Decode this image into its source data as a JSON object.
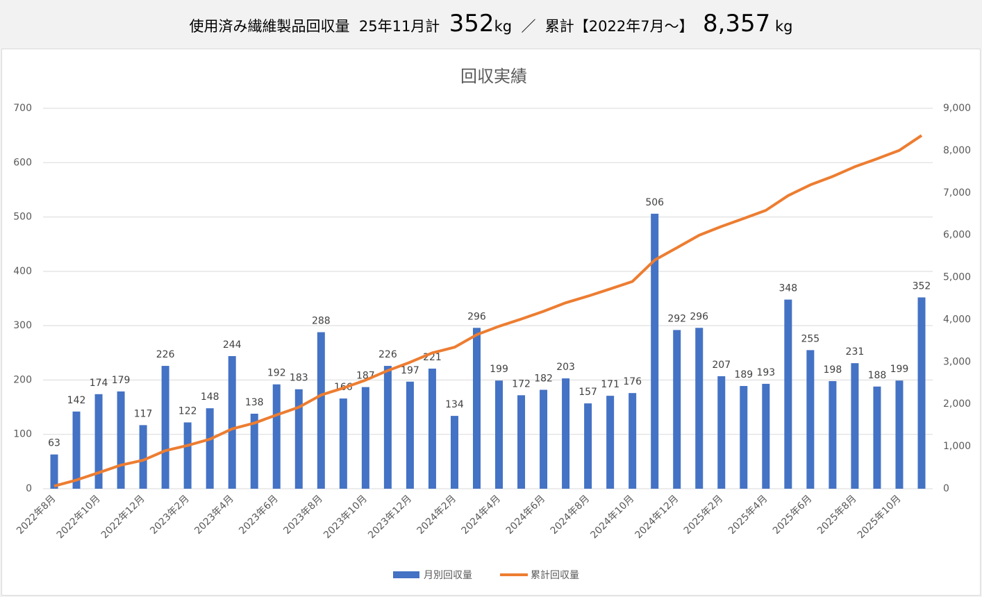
{
  "header": {
    "label": "使用済み繊維製品回収量",
    "month_label": "25年11月計",
    "month_value": "352",
    "month_unit": "kg",
    "separator": "／",
    "total_label": "累計【2022年7月～】",
    "total_value": "8,357",
    "total_unit": "kg"
  },
  "chart_data": {
    "type": "bar",
    "title": "回収実績",
    "categories": [
      "2022年8月",
      null,
      "2022年10月",
      null,
      "2022年12月",
      null,
      "2023年2月",
      null,
      "2023年4月",
      null,
      "2023年6月",
      null,
      "2023年8月",
      null,
      "2023年10月",
      null,
      "2023年12月",
      null,
      "2024年2月",
      null,
      "2024年4月",
      null,
      "2024年6月",
      null,
      "2024年8月",
      null,
      "2024年10月",
      null,
      "2024年12月",
      null,
      "2025年2月",
      null,
      "2025年4月",
      null,
      "2025年6月",
      null,
      "2025年8月",
      null,
      "2025年10月",
      null
    ],
    "series": [
      {
        "name": "月別回収量",
        "type": "bar",
        "color": "#4472c4",
        "values": [
          63,
          142,
          174,
          179,
          117,
          226,
          122,
          148,
          244,
          138,
          192,
          183,
          288,
          166,
          187,
          226,
          197,
          221,
          134,
          296,
          199,
          172,
          182,
          203,
          157,
          171,
          176,
          506,
          292,
          296,
          207,
          189,
          193,
          348,
          255,
          198,
          231,
          188,
          199,
          352
        ]
      },
      {
        "name": "累計回収量",
        "type": "line",
        "axis": "y2",
        "color": "#ed7d31",
        "values": [
          63,
          205,
          379,
          558,
          675,
          901,
          1023,
          1171,
          1415,
          1553,
          1745,
          1928,
          2216,
          2382,
          2569,
          2795,
          2992,
          3213,
          3347,
          3643,
          3842,
          4014,
          4196,
          4399,
          4556,
          4727,
          4903,
          5409,
          5701,
          5997,
          6204,
          6393,
          6586,
          6934,
          7189,
          7387,
          7618,
          7806,
          8005,
          8357
        ]
      }
    ],
    "ylim": [
      0,
      700
    ],
    "yticks": [
      0,
      100,
      200,
      300,
      400,
      500,
      600,
      700
    ],
    "y2lim": [
      0,
      9000
    ],
    "y2ticks": [
      0,
      {
        "value": 1000,
        "label": "1,000"
      },
      {
        "value": 2000,
        "label": "2,000"
      },
      {
        "value": 3000,
        "label": "3,000"
      },
      {
        "value": 4000,
        "label": "4,000"
      },
      {
        "value": 5000,
        "label": "5,000"
      },
      {
        "value": 6000,
        "label": "6,000"
      },
      {
        "value": 7000,
        "label": "7,000"
      },
      {
        "value": 8000,
        "label": "8,000"
      },
      {
        "value": 9000,
        "label": "9,000"
      }
    ],
    "grid": true,
    "legend": "bottom"
  }
}
